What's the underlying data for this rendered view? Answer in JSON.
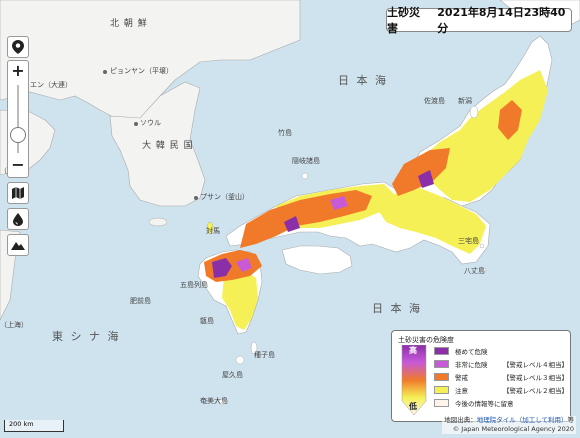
{
  "title": {
    "label": "土砂災害",
    "datetime": "2021年8月14日23時40分"
  },
  "controls": {
    "location_icon": "location-pin-icon",
    "zoom_in": "+",
    "zoom_out": "−",
    "zoom_level": 0.2,
    "map_icon": "map-icon",
    "drop_icon": "drop-icon",
    "terrain_icon": "mountain-icon"
  },
  "sea_labels": {
    "sea_of_japan": "日 本 海",
    "east_china_sea": "東 シ ナ 海",
    "pacific": "日 本 海"
  },
  "places": {
    "north_korea": "北 朝 鮮",
    "pyongyang": "ピョンヤン（平壌）",
    "dalian": "エン（大連）",
    "seoul": "ソウル",
    "south_korea": "大 韓 民 国",
    "busan": "プサン（釜山）",
    "jeju": "（済州）",
    "shanghai": "（上海）",
    "sado": "佐渡島",
    "niigata": "新潟",
    "oki": "隠岐諸島",
    "takeshima": "竹島",
    "tsushima": "対馬",
    "goto": "五島列島",
    "hizen": "肥前島",
    "miyake": "三宅島",
    "hachijo": "八丈島",
    "tanegashima": "種子島",
    "yakushima": "屋久島",
    "amami": "奄美大島",
    "koshikijima": "甑島"
  },
  "legend": {
    "title": "土砂災害の危険度",
    "high": "高",
    "low": "低",
    "rows": [
      {
        "name": "極めて危険",
        "level": "",
        "color": "#8b2fa8"
      },
      {
        "name": "非常に危険",
        "level": "【警戒レベル４相当】",
        "color": "#c85ad8"
      },
      {
        "name": "警戒",
        "level": "【警戒レベル３相当】",
        "color": "#f07a2a"
      },
      {
        "name": "注意",
        "level": "【警戒レベル２相当】",
        "color": "#f5f056"
      },
      {
        "name": "今後の情報等に留意",
        "level": "",
        "color": "#fdf4ea"
      }
    ]
  },
  "scale": {
    "label": "200 km"
  },
  "credit": {
    "source_prefix": "地図出典：",
    "source_link": "地理院タイル（加工して利用）",
    "source_suffix": "等",
    "copyright": "© Japan Meteorological Agency 2020"
  },
  "colors": {
    "sea": "#cfe3ee",
    "land_foreign": "#f3f3f1",
    "land_japan": "#ffffff",
    "border": "#999999"
  }
}
